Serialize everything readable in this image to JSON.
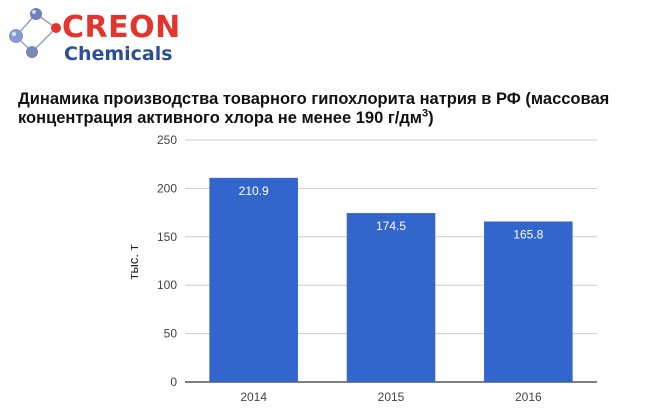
{
  "logo": {
    "brand": "CREON",
    "sub": "Chemicals"
  },
  "title_text": "Динамика производства товарного гипохлорита натрия в РФ (массовая концентрация активного хлора не менее 190 г/дм",
  "title_sup": "3",
  "title_close": ")",
  "colors": {
    "bar": "#3366cc",
    "grid": "#cccccc",
    "axis": "#333333",
    "brand_red": "#e5342d",
    "brand_blue": "#2d4d99"
  },
  "chart_data": {
    "type": "bar",
    "categories": [
      "2014",
      "2015",
      "2016"
    ],
    "values": [
      210.9,
      174.5,
      165.8
    ],
    "data_labels": [
      "210.9",
      "174.5",
      "165.8"
    ],
    "ylabel": "тыс. т",
    "xlabel": "",
    "ylim": [
      0,
      250
    ],
    "yticks": [
      0,
      50,
      100,
      150,
      200,
      250
    ],
    "grid": true,
    "legend": "none"
  }
}
